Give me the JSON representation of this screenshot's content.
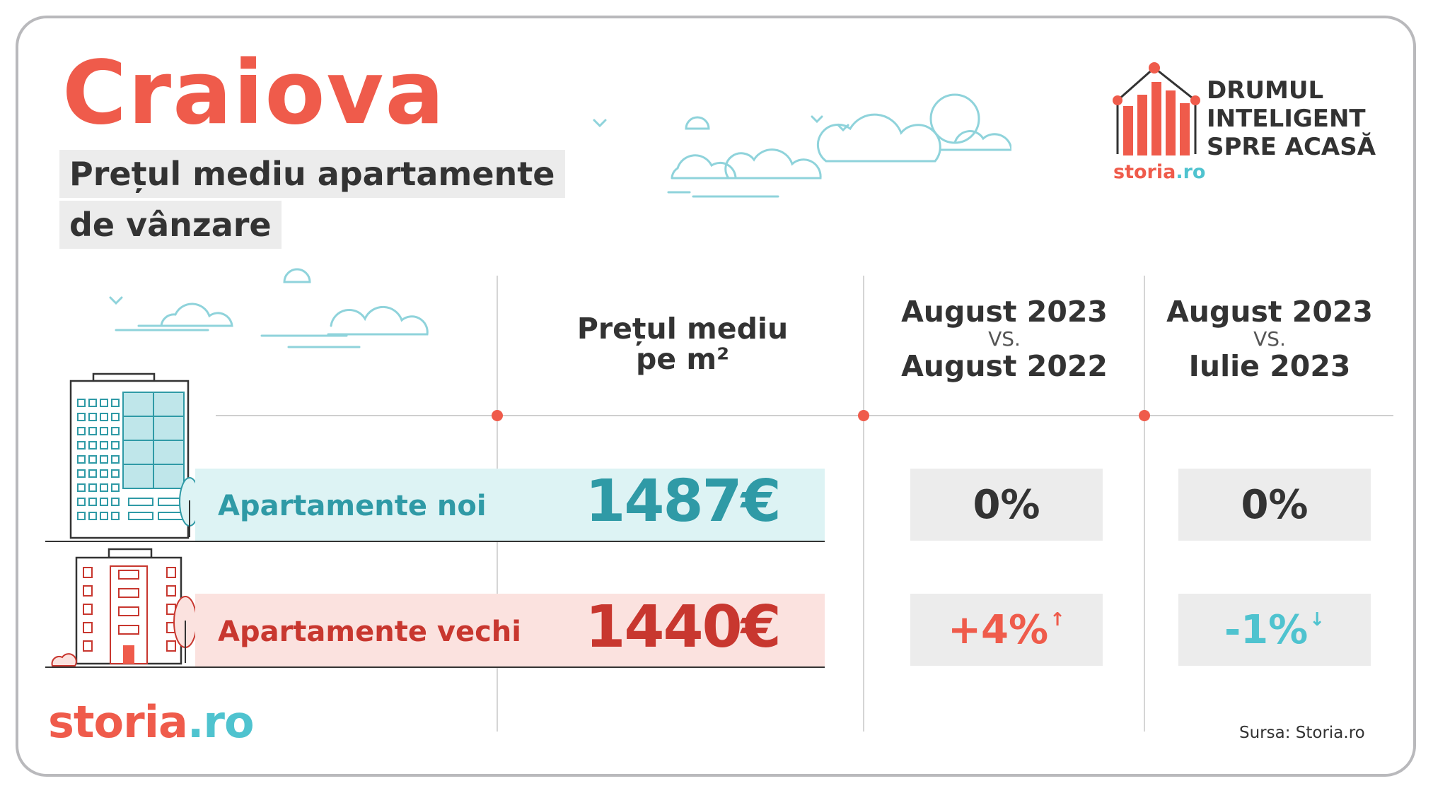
{
  "title": "Craiova",
  "subtitle_line1": "Prețul mediu apartamente",
  "subtitle_line2": "de vânzare",
  "brand_tagline": [
    "DRUMUL",
    "INTELIGENT",
    "SPRE ACASĂ"
  ],
  "brand_logo_small": {
    "part1": "storia",
    "part2": ".ro"
  },
  "columns": {
    "price": {
      "line1": "Prețul mediu",
      "line2": "pe m²"
    },
    "yoy": {
      "line1": "August 2023",
      "vs": "VS.",
      "line2": "August 2022"
    },
    "mom": {
      "line1": "August 2023",
      "vs": "VS.",
      "line2": "Iulie 2023"
    }
  },
  "rows": [
    {
      "label": "Apartamente noi",
      "price": "1487€",
      "yoy": "0%",
      "yoy_arrow": "",
      "mom": "0%",
      "mom_arrow": ""
    },
    {
      "label": "Apartamente vechi",
      "price": "1440€",
      "yoy": "+4%",
      "yoy_arrow": "↑",
      "mom": "-1%",
      "mom_arrow": "↓"
    }
  ],
  "footer_logo": {
    "part1": "storia",
    "part2": ".ro"
  },
  "source": "Sursa: Storia.ro",
  "colors": {
    "accent_red": "#ef5b4b",
    "accent_teal": "#2f9aa6",
    "teal_light": "#4fc3cf",
    "new_band": "#ddf3f4",
    "old_band": "#fbe2df",
    "dark_red": "#c8372f"
  }
}
